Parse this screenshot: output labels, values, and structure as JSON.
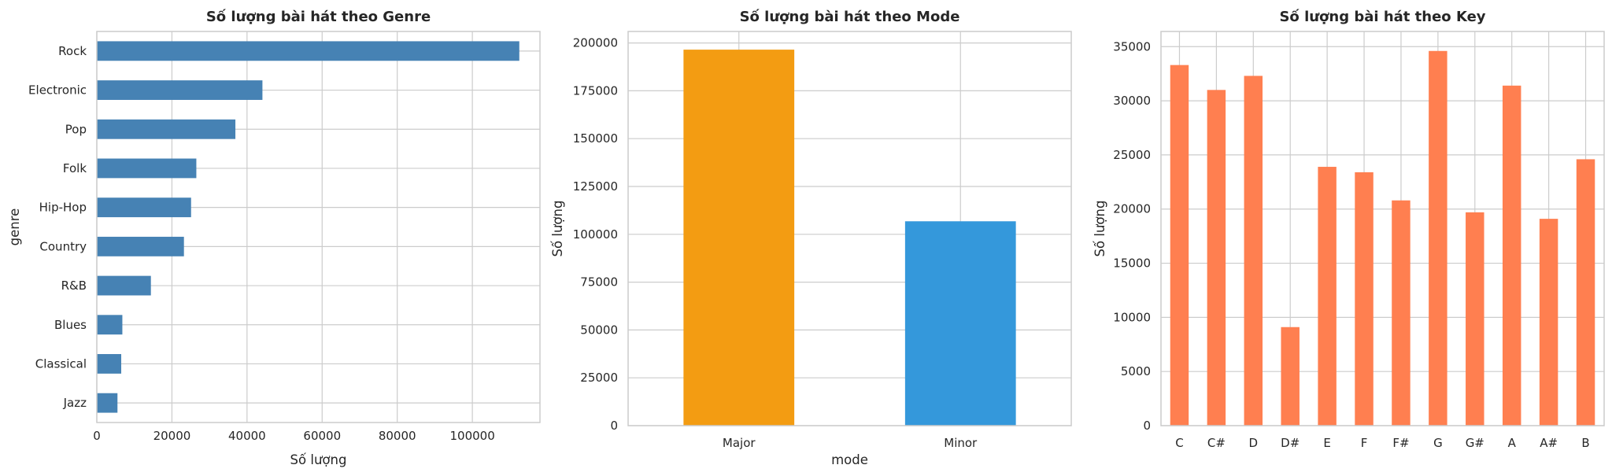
{
  "chart_data": [
    {
      "type": "bar",
      "orientation": "horizontal",
      "title": "Số lượng bài hát theo Genre",
      "xlabel": "Số lượng",
      "ylabel": "genre",
      "categories": [
        "Rock",
        "Electronic",
        "Pop",
        "Folk",
        "Hip-Hop",
        "Country",
        "R&B",
        "Blues",
        "Classical",
        "Jazz"
      ],
      "values": [
        112500,
        44100,
        36900,
        26500,
        25100,
        23200,
        14400,
        6800,
        6500,
        5500
      ],
      "xlim": [
        0,
        118000
      ],
      "xticks": [
        0,
        20000,
        40000,
        60000,
        80000,
        100000
      ],
      "color": "#4682b4",
      "grid": true
    },
    {
      "type": "bar",
      "title": "Số lượng bài hát theo Mode",
      "xlabel": "mode",
      "ylabel": "Số lượng",
      "categories": [
        "Major",
        "Minor"
      ],
      "values": [
        196500,
        106800
      ],
      "colors": [
        "#f39c12",
        "#3498db"
      ],
      "ylim": [
        0,
        206000
      ],
      "yticks": [
        0,
        25000,
        50000,
        75000,
        100000,
        125000,
        150000,
        175000,
        200000
      ],
      "grid": true
    },
    {
      "type": "bar",
      "title": "Số lượng bài hát theo Key",
      "xlabel": "",
      "ylabel": "Số lượng",
      "categories": [
        "C",
        "C#",
        "D",
        "D#",
        "E",
        "F",
        "F#",
        "G",
        "G#",
        "A",
        "A#",
        "B"
      ],
      "values": [
        33300,
        31000,
        32300,
        9100,
        23900,
        23400,
        20800,
        34600,
        19700,
        31400,
        19100,
        24600
      ],
      "color": "#ff7f50",
      "ylim": [
        0,
        36400
      ],
      "yticks": [
        0,
        5000,
        10000,
        15000,
        20000,
        25000,
        30000,
        35000
      ],
      "grid": true
    }
  ]
}
